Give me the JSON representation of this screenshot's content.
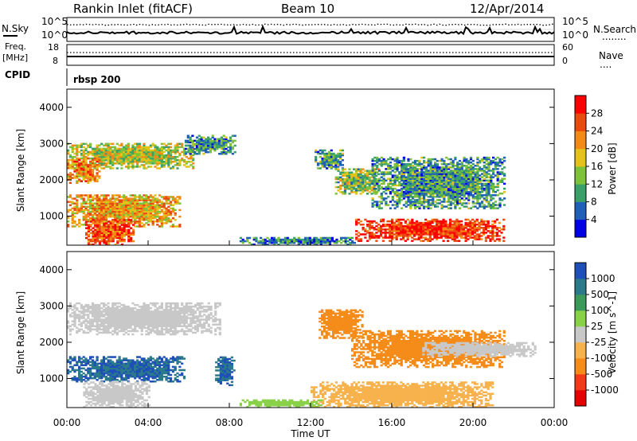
{
  "header": {
    "station": "Rankin Inlet (fitACF)",
    "beam": "Beam 10",
    "date": "12/Apr/2014"
  },
  "top_panels": {
    "nsky_label": "N.Sky",
    "nsearch_label": "N.Search",
    "nsearch_line": "........",
    "exp_top": "10^5",
    "exp_bottom": "10^0",
    "freq_label_1": "Freq.",
    "freq_label_2": "[MHz]",
    "freq_ticks": [
      "18",
      "8"
    ],
    "nave_ticks": [
      "60",
      "0"
    ],
    "nave_label": "Nave",
    "nave_line": "....",
    "cpid_label": "CPID",
    "cpid_value": "rbsp 200"
  },
  "axes": {
    "xlabel": "Time UT",
    "x_ticks": [
      "00:00",
      "04:00",
      "08:00",
      "12:00",
      "16:00",
      "20:00",
      "00:00"
    ],
    "ylabel": "Slant Range [km]",
    "y_ticks": [
      "4000",
      "3000",
      "2000",
      "1000"
    ]
  },
  "chart_data": [
    {
      "type": "heatmap",
      "title": "",
      "xlabel": "Time UT",
      "ylabel": "Slant Range [km]",
      "xlim": [
        0,
        24
      ],
      "ylim": [
        200,
        4500
      ],
      "colorbar": {
        "label": "Power [dB]",
        "ticks": [
          "28",
          "24",
          "20",
          "16",
          "12",
          "8",
          "4"
        ],
        "colors": [
          "#0000e6",
          "#1f5fb8",
          "#3aa06a",
          "#7dc23a",
          "#e3c21a",
          "#f28a18",
          "#e84a10",
          "#ff0000"
        ]
      },
      "regions": [
        {
          "t": [
            0.0,
            6.2
          ],
          "r": [
            2300,
            3000
          ],
          "level": 16
        },
        {
          "t": [
            0.0,
            1.6
          ],
          "r": [
            1900,
            2600
          ],
          "level": 22
        },
        {
          "t": [
            0.0,
            5.6
          ],
          "r": [
            700,
            1600
          ],
          "level": 20
        },
        {
          "t": [
            0.9,
            3.3
          ],
          "r": [
            200,
            900
          ],
          "level": 26
        },
        {
          "t": [
            5.8,
            8.3
          ],
          "r": [
            2700,
            3200
          ],
          "level": 10
        },
        {
          "t": [
            12.2,
            13.6
          ],
          "r": [
            2300,
            2800
          ],
          "level": 10
        },
        {
          "t": [
            13.2,
            15.3
          ],
          "r": [
            1600,
            2300
          ],
          "level": 14
        },
        {
          "t": [
            14.2,
            21.5
          ],
          "r": [
            300,
            900
          ],
          "level": 28
        },
        {
          "t": [
            15.0,
            21.5
          ],
          "r": [
            1200,
            2600
          ],
          "level": 10
        },
        {
          "t": [
            8.5,
            14.2
          ],
          "r": [
            200,
            400
          ],
          "level": 8
        }
      ]
    },
    {
      "type": "heatmap",
      "title": "",
      "xlabel": "Time UT",
      "ylabel": "Slant Range [km]",
      "xlim": [
        0,
        24
      ],
      "ylim": [
        200,
        4500
      ],
      "colorbar": {
        "label": "Velocity [m s^-1]",
        "ticks": [
          "1000",
          "500",
          "100",
          "25",
          "-25",
          "-100",
          "-500",
          "-1000"
        ],
        "colors": [
          "#e60000",
          "#f23a18",
          "#f58c1a",
          "#f7b24d",
          "#c8c8c8",
          "#8ad14a",
          "#3a9a5a",
          "#2a7a8a",
          "#1f4fb8"
        ]
      },
      "regions": [
        {
          "t": [
            0.0,
            7.5
          ],
          "r": [
            2200,
            3100
          ],
          "v": 0
        },
        {
          "t": [
            0.0,
            5.8
          ],
          "r": [
            900,
            1600
          ],
          "v": 1000
        },
        {
          "t": [
            7.3,
            8.2
          ],
          "r": [
            800,
            1600
          ],
          "v": 1000
        },
        {
          "t": [
            0.8,
            4.0
          ],
          "r": [
            200,
            900
          ],
          "v": 0
        },
        {
          "t": [
            12.4,
            14.5
          ],
          "r": [
            2100,
            2900
          ],
          "v": -200
        },
        {
          "t": [
            14.0,
            21.5
          ],
          "r": [
            1300,
            2300
          ],
          "v": -200
        },
        {
          "t": [
            17.5,
            23.0
          ],
          "r": [
            1600,
            2000
          ],
          "v": 0
        },
        {
          "t": [
            12.0,
            21.0
          ],
          "r": [
            200,
            900
          ],
          "v": -60
        },
        {
          "t": [
            8.5,
            12.5
          ],
          "r": [
            200,
            400
          ],
          "v": 50
        }
      ]
    }
  ]
}
